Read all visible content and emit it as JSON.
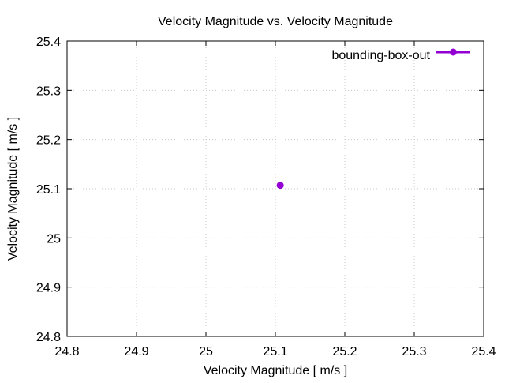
{
  "chart_data": {
    "type": "scatter",
    "title": "Velocity Magnitude vs. Velocity Magnitude",
    "xlabel": "Velocity Magnitude [ m/s ]",
    "ylabel": "Velocity Magnitude [ m/s ]",
    "xlim": [
      24.8,
      25.4
    ],
    "ylim": [
      24.8,
      25.4
    ],
    "xticks": [
      "24.8",
      "24.9",
      "25",
      "25.1",
      "25.2",
      "25.3",
      "25.4"
    ],
    "yticks": [
      "24.8",
      "24.9",
      "25",
      "25.1",
      "25.2",
      "25.3",
      "25.4"
    ],
    "grid": true,
    "legend_position": "top-right",
    "series": [
      {
        "name": "bounding-box-out",
        "color": "#9400d3",
        "x": [
          25.107
        ],
        "y": [
          25.107
        ]
      }
    ]
  }
}
